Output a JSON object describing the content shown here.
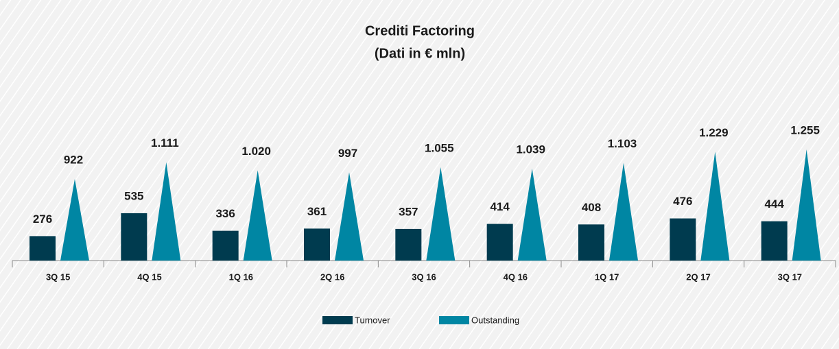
{
  "chart_data": {
    "type": "bar",
    "title": "Crediti Factoring",
    "subtitle": "(Dati in € mln)",
    "categories": [
      "3Q 15",
      "4Q 15",
      "1Q 16",
      "2Q 16",
      "3Q 16",
      "4Q 16",
      "1Q 17",
      "2Q 17",
      "3Q 17"
    ],
    "series": [
      {
        "name": "Turnover",
        "color": "#003b4f",
        "values": [
          276,
          535,
          336,
          361,
          357,
          414,
          408,
          476,
          444
        ]
      },
      {
        "name": "Outstanding",
        "color": "#0086a3",
        "values": [
          922,
          1111,
          1020,
          997,
          1055,
          1039,
          1103,
          1229,
          1255
        ],
        "value_labels": [
          "922",
          "1.111",
          "1.020",
          "997",
          "1.055",
          "1.039",
          "1.103",
          "1.229",
          "1.255"
        ]
      }
    ],
    "legend": "bottom"
  }
}
